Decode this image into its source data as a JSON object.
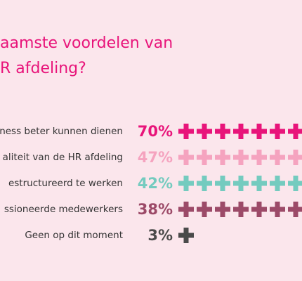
{
  "title": {
    "line1": "aamste voordelen van",
    "line2": "R afdeling?"
  },
  "chart_data": {
    "type": "bar",
    "categories": [
      "ness beter kunnen dienen",
      "aliteit van de HR afdeling",
      "estructureerd te werken",
      "ssioneerde medewerkers",
      "Geen op dit moment"
    ],
    "values": [
      70,
      47,
      42,
      38,
      3
    ],
    "value_labels": [
      "70%",
      "47%",
      "42%",
      "38%",
      "3%"
    ],
    "colors": [
      "#e8147a",
      "#f5a3bf",
      "#74cbbf",
      "#9c4a68",
      "#4a4a4a"
    ],
    "symbol": "plus",
    "xlim": [
      0,
      100
    ],
    "legend": "none",
    "grid": false
  }
}
